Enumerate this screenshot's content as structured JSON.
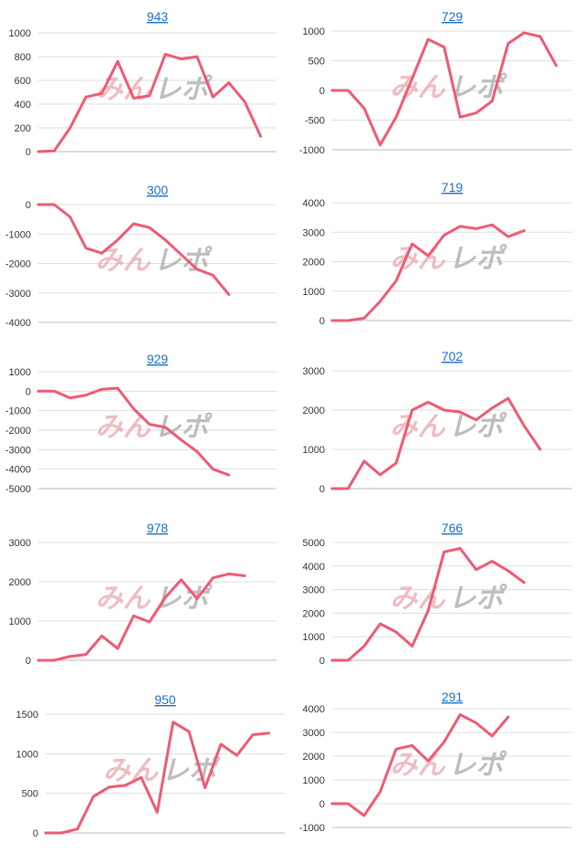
{
  "watermark": {
    "pink_text": "みん",
    "gray_text": "レポ",
    "pink_color": "#e9a7ae",
    "gray_color": "#a9a9a9"
  },
  "line_color": "#ef5a73",
  "grid_color": "#dddddd",
  "chart_data": [
    {
      "type": "line",
      "title": "943",
      "yticks": [
        0,
        200,
        400,
        600,
        800,
        1000
      ],
      "ylim": [
        0,
        1000
      ],
      "x": [
        0,
        1,
        2,
        3,
        4,
        5,
        6,
        7,
        8,
        9,
        10,
        11,
        12,
        13,
        14,
        15
      ],
      "values": [
        0,
        5,
        200,
        460,
        490,
        760,
        450,
        470,
        820,
        780,
        800,
        460,
        580,
        420,
        130,
        null
      ]
    },
    {
      "type": "line",
      "title": "729",
      "yticks": [
        -1000,
        -500,
        0,
        500,
        1000
      ],
      "ylim": [
        -1000,
        1000
      ],
      "x": [
        0,
        1,
        2,
        3,
        4,
        5,
        6,
        7,
        8,
        9,
        10,
        11,
        12,
        13,
        14,
        15
      ],
      "values": [
        0,
        0,
        -300,
        -920,
        -450,
        200,
        860,
        730,
        -450,
        -380,
        -180,
        790,
        970,
        910,
        420,
        null
      ]
    },
    {
      "type": "line",
      "title": "300",
      "yticks": [
        -4000,
        -3000,
        -2000,
        -1000,
        0
      ],
      "ylim": [
        -4000,
        0
      ],
      "x": [
        0,
        1,
        2,
        3,
        4,
        5,
        6,
        7,
        8,
        9,
        10,
        11,
        12,
        13,
        14,
        15
      ],
      "values": [
        0,
        0,
        -420,
        -1480,
        -1650,
        -1200,
        -650,
        -780,
        -1200,
        -1700,
        -2200,
        -2400,
        -3050,
        null,
        null,
        null
      ]
    },
    {
      "type": "line",
      "title": "719",
      "yticks": [
        0,
        1000,
        2000,
        3000,
        4000
      ],
      "ylim": [
        0,
        4000
      ],
      "x": [
        0,
        1,
        2,
        3,
        4,
        5,
        6,
        7,
        8,
        9,
        10,
        11,
        12,
        13,
        14,
        15
      ],
      "values": [
        0,
        0,
        80,
        650,
        1350,
        2600,
        2200,
        2900,
        3200,
        3120,
        3250,
        2850,
        3050,
        null,
        null,
        null
      ]
    },
    {
      "type": "line",
      "title": "929",
      "yticks": [
        -5000,
        -4000,
        -3000,
        -2000,
        -1000,
        0,
        1000
      ],
      "ylim": [
        -5000,
        1000
      ],
      "x": [
        0,
        1,
        2,
        3,
        4,
        5,
        6,
        7,
        8,
        9,
        10,
        11,
        12,
        13,
        14,
        15
      ],
      "values": [
        0,
        0,
        -350,
        -200,
        100,
        150,
        -900,
        -1700,
        -1850,
        -2500,
        -3100,
        -4000,
        -4300,
        null,
        null,
        null
      ]
    },
    {
      "type": "line",
      "title": "702",
      "yticks": [
        0,
        1000,
        2000,
        3000
      ],
      "ylim": [
        0,
        3000
      ],
      "x": [
        0,
        1,
        2,
        3,
        4,
        5,
        6,
        7,
        8,
        9,
        10,
        11,
        12,
        13,
        14,
        15
      ],
      "values": [
        0,
        0,
        700,
        350,
        650,
        2000,
        2200,
        2000,
        1950,
        1750,
        2050,
        2300,
        1600,
        1000,
        null,
        null
      ]
    },
    {
      "type": "line",
      "title": "978",
      "yticks": [
        0,
        1000,
        2000,
        3000
      ],
      "ylim": [
        0,
        3000
      ],
      "x": [
        0,
        1,
        2,
        3,
        4,
        5,
        6,
        7,
        8,
        9,
        10,
        11,
        12,
        13,
        14,
        15
      ],
      "values": [
        0,
        0,
        100,
        150,
        620,
        300,
        1130,
        980,
        1600,
        2050,
        1570,
        2100,
        2200,
        2150,
        null,
        null
      ]
    },
    {
      "type": "line",
      "title": "766",
      "yticks": [
        0,
        1000,
        2000,
        3000,
        4000,
        5000
      ],
      "ylim": [
        0,
        5000
      ],
      "x": [
        0,
        1,
        2,
        3,
        4,
        5,
        6,
        7,
        8,
        9,
        10,
        11,
        12,
        13,
        14,
        15
      ],
      "values": [
        0,
        0,
        600,
        1550,
        1200,
        600,
        2100,
        4600,
        4750,
        3850,
        4200,
        3800,
        3300,
        null,
        null,
        null
      ]
    },
    {
      "type": "line",
      "title": "950",
      "yticks": [
        0,
        500,
        1000,
        1500
      ],
      "ylim": [
        0,
        1500
      ],
      "x": [
        0,
        1,
        2,
        3,
        4,
        5,
        6,
        7,
        8,
        9,
        10,
        11,
        12,
        13,
        14,
        15
      ],
      "values": [
        0,
        0,
        50,
        460,
        580,
        600,
        700,
        260,
        1400,
        1280,
        570,
        1120,
        980,
        1240,
        1260,
        null
      ]
    },
    {
      "type": "line",
      "title": "291",
      "yticks": [
        -1000,
        0,
        1000,
        2000,
        3000,
        4000
      ],
      "ylim": [
        -1000,
        4000
      ],
      "x": [
        0,
        1,
        2,
        3,
        4,
        5,
        6,
        7,
        8,
        9,
        10,
        11,
        12,
        13,
        14,
        15
      ],
      "values": [
        0,
        0,
        -500,
        500,
        2300,
        2450,
        1800,
        2600,
        3750,
        3400,
        2850,
        3650,
        null,
        null,
        null,
        null
      ]
    }
  ]
}
